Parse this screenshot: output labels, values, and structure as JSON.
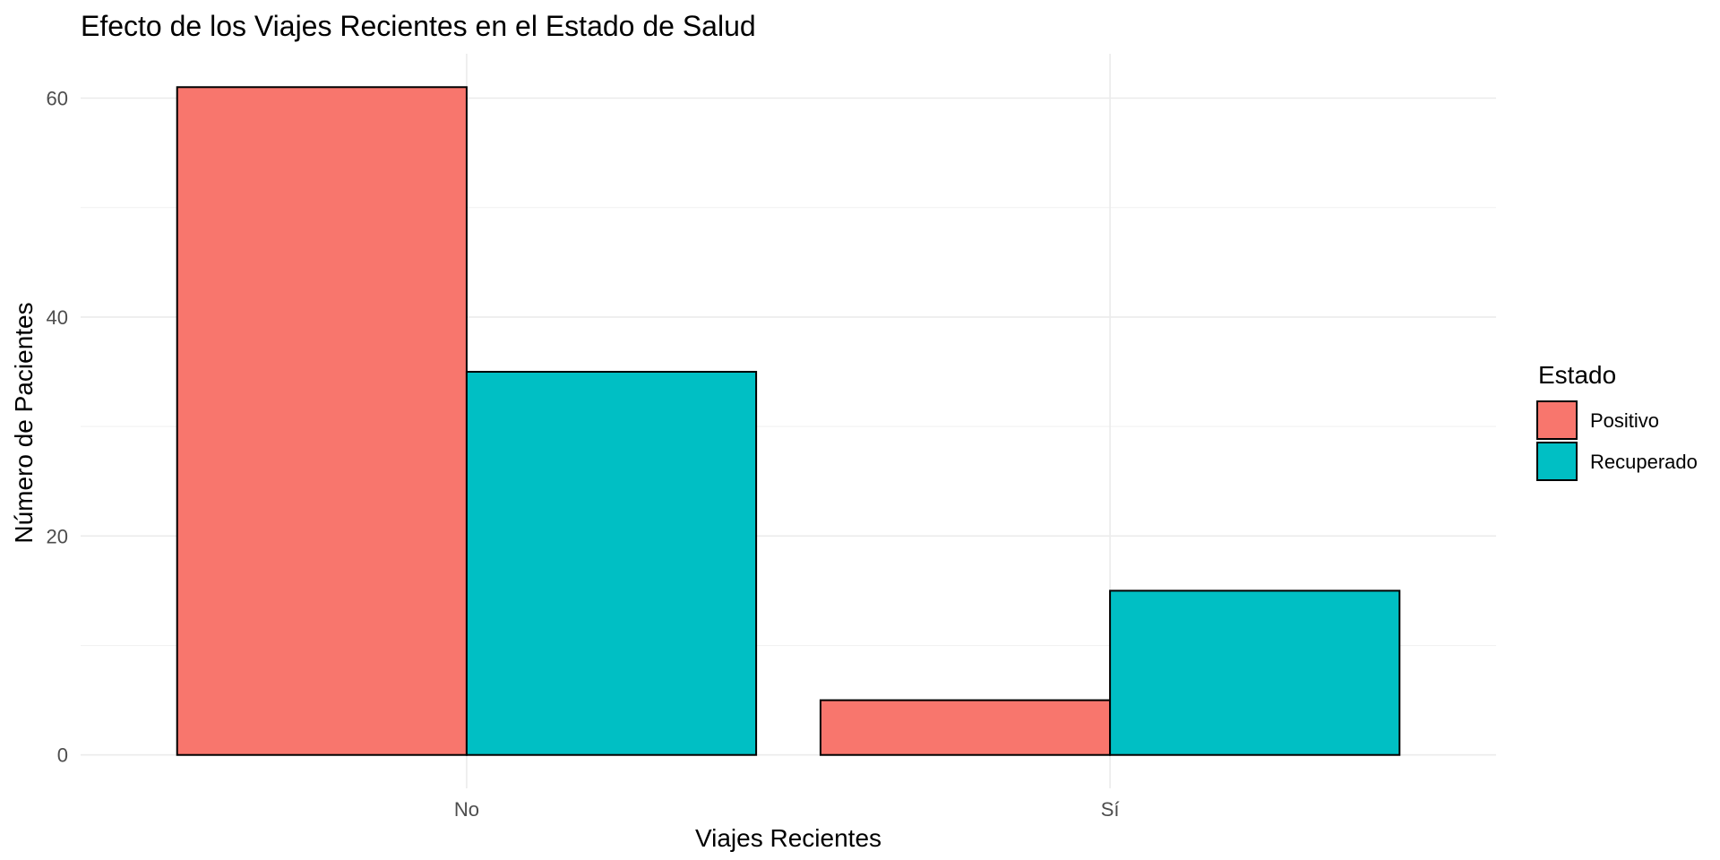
{
  "chart_data": {
    "type": "bar",
    "title": "Efecto de los Viajes Recientes en el Estado de Salud",
    "xlabel": "Viajes Recientes",
    "ylabel": "Número de Pacientes",
    "categories": [
      "No",
      "Sí"
    ],
    "series": [
      {
        "name": "Positivo",
        "values": [
          61,
          5
        ],
        "color": "#F8766D"
      },
      {
        "name": "Recuperado",
        "values": [
          35,
          15
        ],
        "color": "#00BFC4"
      }
    ],
    "ylim": [
      -3.05,
      64.05
    ],
    "yticks": [
      0,
      20,
      40,
      60
    ],
    "yticks_minor": [
      10,
      30,
      50
    ],
    "legend": {
      "title": "Estado",
      "position": "right"
    },
    "grid": true,
    "bar_outline": "#000000"
  }
}
